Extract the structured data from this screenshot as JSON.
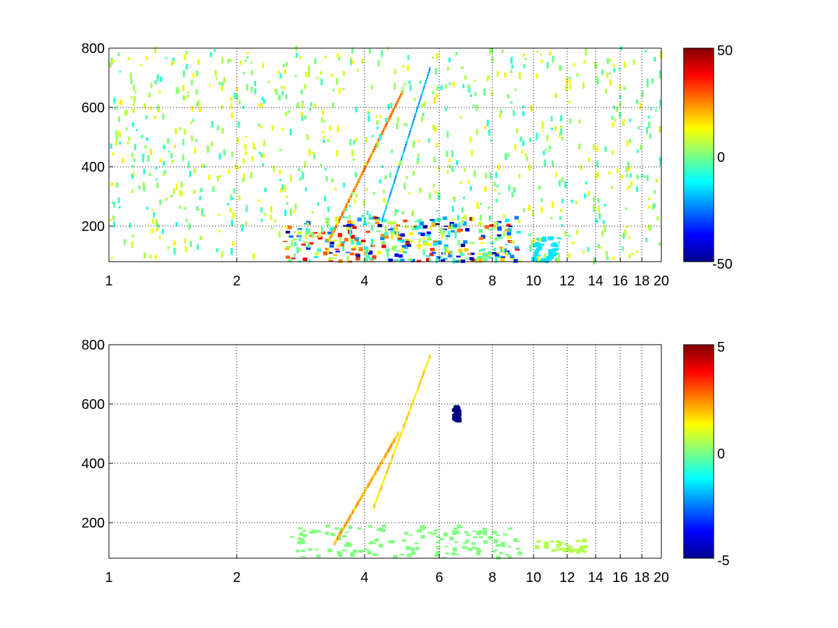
{
  "chart_data": [
    {
      "type": "heatmap",
      "title": "",
      "xlabel": "",
      "ylabel": "",
      "xscale": "log",
      "xlim": [
        1,
        20
      ],
      "ylim": [
        80,
        800
      ],
      "x_ticks": [
        1,
        2,
        4,
        6,
        8,
        10,
        12,
        14,
        16,
        18,
        20
      ],
      "y_ticks": [
        200,
        400,
        600,
        800
      ],
      "grid": true,
      "colormap": "jet",
      "colorbar": {
        "range": [
          -50,
          50
        ],
        "ticks": [
          50,
          0,
          -50
        ]
      },
      "features": [
        {
          "description": "dense band of strong values",
          "x": [
            2.6,
            9.3
          ],
          "y": [
            80,
            230
          ],
          "value_range": [
            -50,
            40
          ]
        },
        {
          "description": "positive ridge",
          "x": [
            3.3,
            4.9
          ],
          "y": [
            150,
            650
          ],
          "value": 25
        },
        {
          "description": "negative ridge",
          "x": [
            4.4,
            5.7
          ],
          "y": [
            220,
            730
          ],
          "value": -20
        },
        {
          "description": "negative patch",
          "x": [
            10.0,
            11.5
          ],
          "y": [
            80,
            160
          ],
          "value": -15
        },
        {
          "description": "sparse scattered values",
          "x": [
            1,
            20
          ],
          "y": [
            80,
            800
          ],
          "value_range": [
            -10,
            15
          ]
        }
      ]
    },
    {
      "type": "heatmap",
      "title": "",
      "xlabel": "",
      "ylabel": "",
      "xscale": "log",
      "xlim": [
        1,
        20
      ],
      "ylim": [
        80,
        800
      ],
      "x_ticks": [
        1,
        2,
        4,
        6,
        8,
        10,
        12,
        14,
        16,
        18,
        20
      ],
      "y_ticks": [
        200,
        400,
        600,
        800
      ],
      "grid": true,
      "colormap": "jet",
      "colorbar": {
        "range": [
          -5,
          5
        ],
        "ticks": [
          5,
          0,
          -5
        ]
      },
      "features": [
        {
          "description": "low-amplitude band",
          "x": [
            2.6,
            9.3
          ],
          "y": [
            80,
            190
          ],
          "value": 0
        },
        {
          "description": "positive ridge",
          "x": [
            3.4,
            4.8
          ],
          "y": [
            130,
            500
          ],
          "value": 2
        },
        {
          "description": "positive ridge",
          "x": [
            4.2,
            5.7
          ],
          "y": [
            250,
            760
          ],
          "value": 1.5
        },
        {
          "description": "negative spot",
          "x": [
            6.5,
            6.7
          ],
          "y": [
            540,
            590
          ],
          "value": -5
        },
        {
          "description": "weak tail",
          "x": [
            10.0,
            13.3
          ],
          "y": [
            100,
            140
          ],
          "value": 0.5
        }
      ]
    }
  ]
}
